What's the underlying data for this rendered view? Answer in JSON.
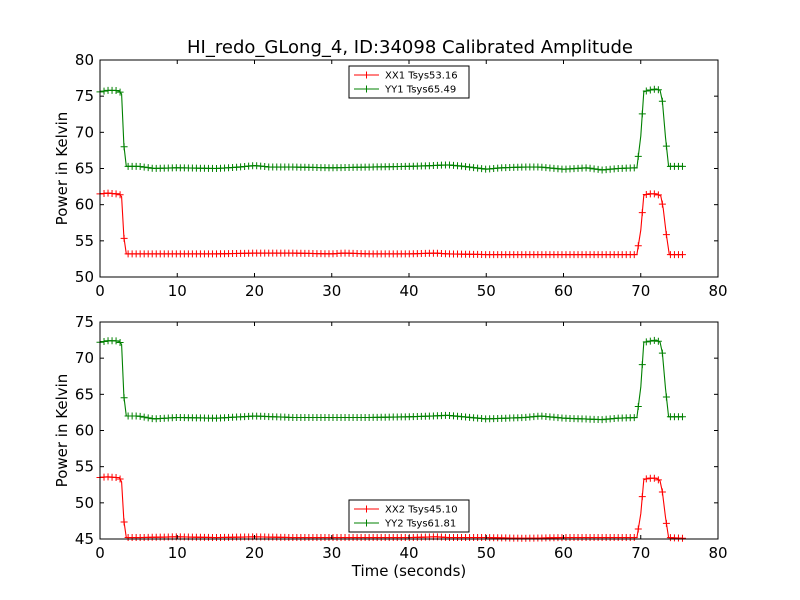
{
  "figure": {
    "title": "HI_redo_GLong_4, ID:34098 Calibrated Amplitude"
  },
  "chart_data": [
    {
      "type": "line",
      "ylabel": "Power in Kelvin",
      "xlabel": "",
      "xlim": [
        0,
        80
      ],
      "ylim": [
        50,
        80
      ],
      "x_ticks": [
        "0",
        "10",
        "20",
        "30",
        "40",
        "50",
        "60",
        "70",
        "80"
      ],
      "y_ticks": [
        "50",
        "55",
        "60",
        "65",
        "70",
        "75",
        "80"
      ],
      "legend_position": "upper-center",
      "series": [
        {
          "name": "XX1 Tsys53.16",
          "color": "#ff0000",
          "points": [
            [
              0,
              61.5
            ],
            [
              1,
              61.6
            ],
            [
              2,
              61.5
            ],
            [
              2.5,
              61.5
            ],
            [
              2.8,
              61.1
            ],
            [
              3.1,
              55.5
            ],
            [
              3.4,
              53.2
            ],
            [
              5,
              53.2
            ],
            [
              10,
              53.2
            ],
            [
              15,
              53.2
            ],
            [
              20,
              53.3
            ],
            [
              25,
              53.3
            ],
            [
              30,
              53.2
            ],
            [
              31.5,
              53.3
            ],
            [
              35,
              53.2
            ],
            [
              40,
              53.2
            ],
            [
              43.5,
              53.3
            ],
            [
              45,
              53.2
            ],
            [
              50,
              53.1
            ],
            [
              55,
              53.1
            ],
            [
              60,
              53.1
            ],
            [
              65,
              53.1
            ],
            [
              69.5,
              53.1
            ],
            [
              70,
              56.5
            ],
            [
              70.4,
              61.3
            ],
            [
              71,
              61.5
            ],
            [
              72,
              61.5
            ],
            [
              72.6,
              61.2
            ],
            [
              72.9,
              59.5
            ],
            [
              73.3,
              56.0
            ],
            [
              73.7,
              53.1
            ],
            [
              75.5,
              53.1
            ]
          ]
        },
        {
          "name": "YY1 Tsys65.49",
          "color": "#008000",
          "points": [
            [
              0,
              75.6
            ],
            [
              1,
              75.8
            ],
            [
              2,
              75.8
            ],
            [
              2.5,
              75.7
            ],
            [
              2.8,
              75.3
            ],
            [
              3.1,
              68.2
            ],
            [
              3.4,
              65.3
            ],
            [
              5,
              65.3
            ],
            [
              7,
              65.0
            ],
            [
              10,
              65.1
            ],
            [
              15,
              65.0
            ],
            [
              18,
              65.2
            ],
            [
              20,
              65.4
            ],
            [
              22,
              65.2
            ],
            [
              25,
              65.2
            ],
            [
              30,
              65.1
            ],
            [
              35,
              65.2
            ],
            [
              40,
              65.3
            ],
            [
              43,
              65.4
            ],
            [
              45,
              65.5
            ],
            [
              47,
              65.3
            ],
            [
              50,
              64.9
            ],
            [
              52,
              65.1
            ],
            [
              55,
              65.2
            ],
            [
              57,
              65.2
            ],
            [
              60,
              64.9
            ],
            [
              63,
              65.1
            ],
            [
              65,
              64.8
            ],
            [
              67,
              65.0
            ],
            [
              69.5,
              65.1
            ],
            [
              70,
              69.5
            ],
            [
              70.4,
              75.6
            ],
            [
              71,
              75.8
            ],
            [
              72,
              76.0
            ],
            [
              72.5,
              75.8
            ],
            [
              72.8,
              74.3
            ],
            [
              73.2,
              69.3
            ],
            [
              73.6,
              65.3
            ],
            [
              75.5,
              65.3
            ]
          ]
        }
      ]
    },
    {
      "type": "line",
      "ylabel": "Power in Kelvin",
      "xlabel": "Time (seconds)",
      "xlim": [
        0,
        80
      ],
      "ylim": [
        45,
        75
      ],
      "x_ticks": [
        "0",
        "10",
        "20",
        "30",
        "40",
        "50",
        "60",
        "70",
        "80"
      ],
      "y_ticks": [
        "45",
        "50",
        "55",
        "60",
        "65",
        "70",
        "75"
      ],
      "legend_position": "lower-center",
      "series": [
        {
          "name": "XX2 Tsys45.10",
          "color": "#ff0000",
          "points": [
            [
              0,
              53.5
            ],
            [
              1,
              53.6
            ],
            [
              2,
              53.5
            ],
            [
              2.5,
              53.5
            ],
            [
              2.8,
              52.9
            ],
            [
              3.1,
              47.5
            ],
            [
              3.4,
              45.2
            ],
            [
              5,
              45.2
            ],
            [
              10,
              45.3
            ],
            [
              15,
              45.2
            ],
            [
              20,
              45.3
            ],
            [
              25,
              45.2
            ],
            [
              30,
              45.2
            ],
            [
              35,
              45.2
            ],
            [
              40,
              45.2
            ],
            [
              43.5,
              45.3
            ],
            [
              45,
              45.2
            ],
            [
              50,
              45.2
            ],
            [
              55,
              45.1
            ],
            [
              60,
              45.2
            ],
            [
              65,
              45.2
            ],
            [
              69.5,
              45.2
            ],
            [
              70,
              48.5
            ],
            [
              70.4,
              53.2
            ],
            [
              71,
              53.4
            ],
            [
              72,
              53.4
            ],
            [
              72.5,
              53.0
            ],
            [
              72.8,
              51.5
            ],
            [
              73.2,
              48.0
            ],
            [
              73.6,
              45.2
            ],
            [
              75.5,
              45.1
            ]
          ]
        },
        {
          "name": "YY2 Tsys61.81",
          "color": "#008000",
          "points": [
            [
              0,
              72.2
            ],
            [
              1,
              72.4
            ],
            [
              2,
              72.4
            ],
            [
              2.5,
              72.3
            ],
            [
              2.8,
              71.9
            ],
            [
              3.1,
              64.7
            ],
            [
              3.4,
              62.0
            ],
            [
              5,
              62.0
            ],
            [
              7,
              61.6
            ],
            [
              10,
              61.8
            ],
            [
              15,
              61.7
            ],
            [
              20,
              62.0
            ],
            [
              25,
              61.8
            ],
            [
              30,
              61.8
            ],
            [
              35,
              61.8
            ],
            [
              40,
              61.9
            ],
            [
              43,
              62.0
            ],
            [
              45,
              62.1
            ],
            [
              47,
              61.9
            ],
            [
              50,
              61.6
            ],
            [
              55,
              61.8
            ],
            [
              57,
              62.0
            ],
            [
              60,
              61.7
            ],
            [
              65,
              61.5
            ],
            [
              67,
              61.7
            ],
            [
              69.5,
              61.8
            ],
            [
              70,
              66.0
            ],
            [
              70.4,
              72.2
            ],
            [
              71,
              72.3
            ],
            [
              72,
              72.5
            ],
            [
              72.5,
              72.2
            ],
            [
              72.8,
              70.7
            ],
            [
              73.2,
              65.8
            ],
            [
              73.6,
              61.9
            ],
            [
              75.5,
              61.9
            ]
          ]
        }
      ]
    }
  ]
}
